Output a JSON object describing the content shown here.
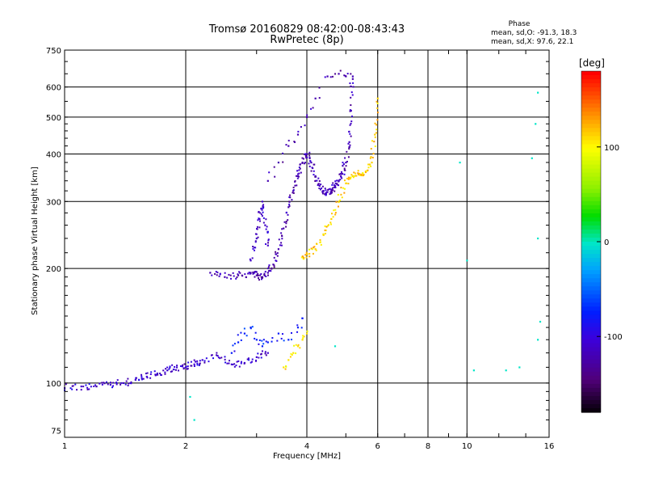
{
  "chart_data": {
    "type": "scatter",
    "title": "Tromsø 20160829 08:42:00-08:43:43",
    "subtitle": "RwPretec (8p)",
    "xlabel": "Frequency [MHz]",
    "ylabel": "Stationary phase Virtual Height [km]",
    "x_scale": "log",
    "y_scale": "log",
    "xlim": [
      1,
      16
    ],
    "ylim": [
      72,
      750
    ],
    "x_ticks": [
      1,
      2,
      4,
      6,
      8,
      10,
      16
    ],
    "y_ticks": [
      75,
      100,
      200,
      300,
      400,
      500,
      600,
      750
    ],
    "grid": true,
    "stats": {
      "heading": "Phase",
      "line_o": "mean, sd,O: -91.3, 18.3",
      "line_x": "mean, sd,X:  97.6, 22.1"
    },
    "colorbar": {
      "label": "[deg]",
      "range": [
        -180,
        180
      ],
      "ticks": [
        100,
        0,
        -100
      ]
    },
    "point_groups": [
      {
        "label": "E-layer trace",
        "color_deg": -105,
        "density": "dense",
        "x": [
          1.0,
          1.1,
          1.2,
          1.3,
          1.4,
          1.5,
          1.6,
          1.7,
          1.8,
          1.9,
          2.0,
          2.1,
          2.2,
          2.4,
          2.6,
          2.8,
          3.0,
          3.2
        ],
        "y": [
          97,
          98,
          98,
          99,
          100,
          102,
          104,
          106,
          108,
          110,
          110,
          112,
          115,
          118,
          112,
          113,
          117,
          120
        ]
      },
      {
        "label": "Es scatter 2.6-3.9 MHz",
        "color_deg": -75,
        "density": "sparse",
        "x": [
          2.6,
          2.7,
          2.8,
          2.9,
          3.0,
          3.1,
          3.2,
          3.4,
          3.6,
          3.8,
          3.9
        ],
        "y": [
          120,
          128,
          135,
          140,
          130,
          125,
          128,
          135,
          130,
          140,
          148
        ]
      },
      {
        "label": "F1 trace low",
        "color_deg": -120,
        "density": "dense",
        "x": [
          2.3,
          2.5,
          2.7,
          2.9,
          3.0,
          3.1,
          3.2,
          3.3,
          3.4,
          3.5,
          3.6,
          3.7,
          3.8,
          3.9,
          4.0
        ],
        "y": [
          195,
          190,
          192,
          195,
          192,
          190,
          195,
          205,
          225,
          255,
          290,
          320,
          350,
          380,
          400
        ]
      },
      {
        "label": "F1 spread column",
        "color_deg": -110,
        "density": "dense",
        "x": [
          2.9,
          3.0,
          3.05,
          3.1,
          3.15,
          3.2
        ],
        "y": [
          210,
          240,
          270,
          300,
          260,
          230
        ]
      },
      {
        "label": "F2 trace",
        "color_deg": -115,
        "density": "dense",
        "x": [
          4.0,
          4.1,
          4.2,
          4.3,
          4.4,
          4.5,
          4.6,
          4.7,
          4.8,
          4.9,
          5.0,
          5.1,
          5.15,
          5.2
        ],
        "y": [
          400,
          380,
          350,
          330,
          320,
          318,
          322,
          330,
          340,
          355,
          380,
          430,
          520,
          640
        ]
      },
      {
        "label": "F2 upper branch",
        "color_deg": -120,
        "density": "sparse",
        "x": [
          3.2,
          3.4,
          3.6,
          3.8,
          4.0,
          4.2,
          4.5,
          4.8,
          5.0,
          5.2
        ],
        "y": [
          340,
          380,
          420,
          450,
          500,
          560,
          640,
          650,
          640,
          630
        ]
      },
      {
        "label": "X-mode trace",
        "color_deg": 115,
        "density": "dense",
        "x": [
          3.9,
          4.0,
          4.2,
          4.4,
          4.6,
          4.8,
          5.0,
          5.2,
          5.4,
          5.6,
          5.8,
          5.9,
          6.0
        ],
        "y": [
          215,
          218,
          225,
          245,
          270,
          300,
          335,
          350,
          355,
          360,
          380,
          450,
          560
        ]
      },
      {
        "label": "X-mode E region",
        "color_deg": 110,
        "density": "sparse",
        "x": [
          3.5,
          3.6,
          3.7,
          3.8,
          3.9,
          4.0
        ],
        "y": [
          110,
          115,
          120,
          125,
          130,
          135
        ]
      },
      {
        "label": "Isolated points",
        "color_deg": 0,
        "density": "single",
        "x": [
          2.05,
          2.1,
          4.7,
          9.6,
          10.0,
          10.4,
          12.5,
          13.5,
          14.5,
          14.8,
          15.0,
          15.0,
          15.0,
          15.2
        ],
        "y": [
          92,
          80,
          125,
          380,
          210,
          108,
          108,
          110,
          390,
          480,
          580,
          240,
          130,
          145
        ]
      }
    ]
  }
}
